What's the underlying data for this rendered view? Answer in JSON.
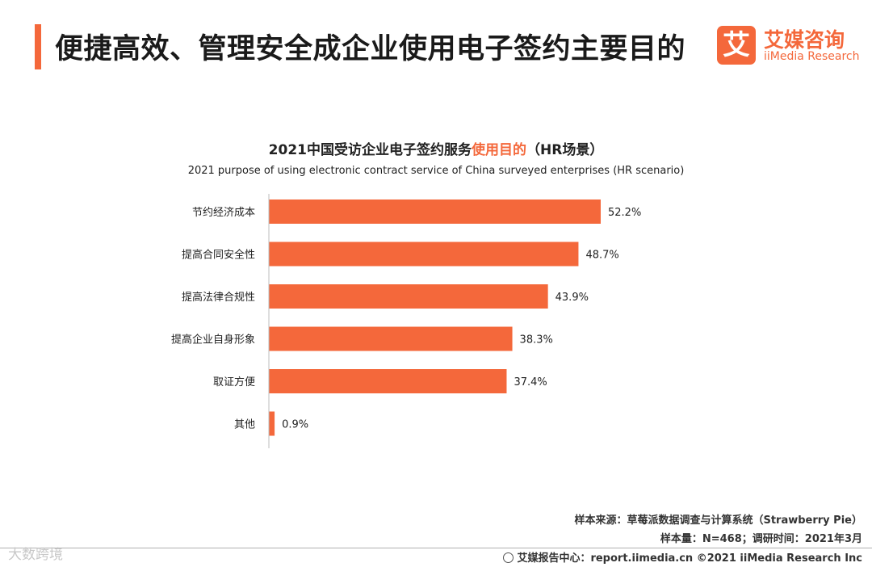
{
  "header": {
    "title": "便捷高效、管理安全成企业使用电子签约主要目的",
    "brand_mark": "艾",
    "brand_name_cn": "艾媒咨询",
    "brand_name_en": "iiMedia Research"
  },
  "chart_data": {
    "type": "bar",
    "orientation": "horizontal",
    "title_prefix": "2021中国受访企业电子签约服务",
    "title_highlight": "使用目的",
    "title_suffix": "（HR场景）",
    "subtitle": "2021 purpose of using electronic contract service of China surveyed enterprises  (HR scenario)",
    "categories": [
      "节约经济成本",
      "提高合同安全性",
      "提高法律合规性",
      "提高企业自身形象",
      "取证方便",
      "其他"
    ],
    "values": [
      52.2,
      48.7,
      43.9,
      38.3,
      37.4,
      0.9
    ],
    "value_labels": [
      "52.2%",
      "48.7%",
      "43.9%",
      "38.3%",
      "37.4%",
      "0.9%"
    ],
    "unit": "%",
    "xlim": [
      0,
      60
    ],
    "bar_color": "#f4683b"
  },
  "footer": {
    "source": "样本来源：草莓派数据调查与计算系统（Strawberry Pie）",
    "sample": "样本量：N=468；调研时间：2021年3月",
    "report": "艾媒报告中心：report.iimedia.cn   ©2021  iiMedia Research  Inc",
    "watermark": "大数跨境"
  },
  "colors": {
    "accent": "#f4683b"
  }
}
